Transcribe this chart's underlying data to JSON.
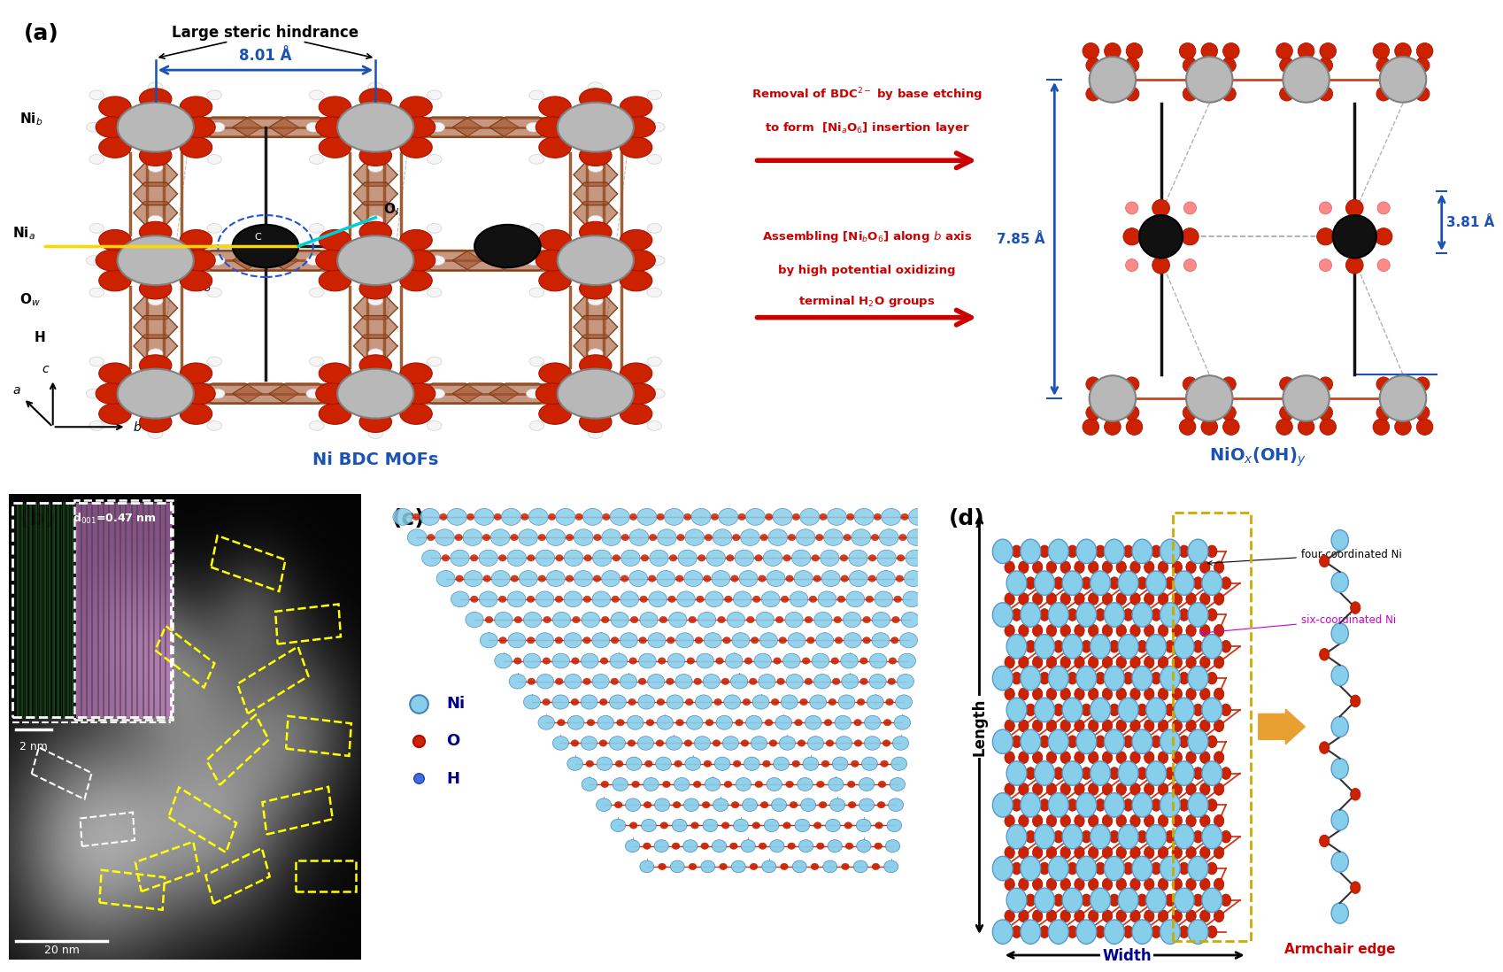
{
  "panel_a_label": "(a)",
  "panel_b_label": "(b)",
  "panel_c_label": "(c)",
  "panel_d_label": "(d)",
  "background_color": "#ffffff",
  "panel_label_fontsize": 18,
  "panel_label_color": "#000000",
  "arrow_red_color": "#cc0000",
  "arrow_text_color": "#cc0000",
  "label_nibdc": "Ni BDC MOFs",
  "label_nibdc_color": "#1a52b5",
  "steric_text": "Large steric hindrance",
  "dist_801": "8.01 Å",
  "dist_785": "7.85 Å",
  "dist_381": "3.81 Å",
  "legend_ni_color": "#87ceeb",
  "legend_o_color": "#cc0000",
  "legend_h_color": "#4169e1",
  "legend_ni_label": "Ni",
  "legend_o_label": "O",
  "legend_h_label": "H",
  "panel_d_width_label": "Width",
  "panel_d_length_label": "Length",
  "panel_d_armchair": "Armchair edge",
  "panel_d_armchair_color": "#cc0000",
  "panel_d_four_coord": "four-coordinated Ni",
  "panel_d_six_coord": "six-coordinated Ni",
  "panel_b_scale1": "2 nm",
  "panel_b_scale2": "20 nm",
  "ni_gray": "#b8b8b8",
  "ni_gray_edge": "#808080",
  "ni_black": "#111111",
  "o_red": "#cc2200",
  "o_red_edge": "#aa1100",
  "h_white": "#f0f0f0",
  "bond_red": "#cc2200",
  "bdc_brown": "#8B4513"
}
